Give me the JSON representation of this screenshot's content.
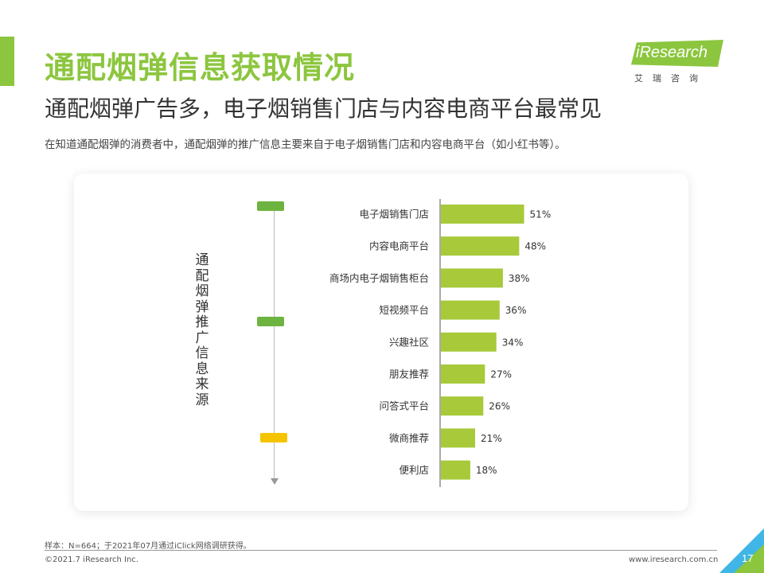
{
  "header": {
    "title": "通配烟弹信息获取情况",
    "subtitle": "通配烟弹广告多，电子烟销售门店与内容电商平台最常见",
    "description": "在知道通配烟弹的消费者中，通配烟弹的推广信息主要来自于电子烟销售门店和内容电商平台（如小红书等）。"
  },
  "logo": {
    "text": "iResearch",
    "cn": "艾瑞咨询",
    "color": "#8cc63f"
  },
  "side_label": "通配烟弹推广信息来源",
  "chart_data": {
    "type": "bar",
    "orientation": "horizontal",
    "categories": [
      "电子烟销售门店",
      "内容电商平台",
      "商场内电子烟销售柜台",
      "短视频平台",
      "兴趣社区",
      "朋友推荐",
      "问答式平台",
      "微商推荐",
      "便利店"
    ],
    "values": [
      51,
      48,
      38,
      36,
      34,
      27,
      26,
      21,
      18
    ],
    "value_labels": [
      "51%",
      "48%",
      "38%",
      "36%",
      "34%",
      "27%",
      "26%",
      "21%",
      "18%"
    ],
    "unit": "%",
    "bar_color": "#a8c93a",
    "xlim": [
      0,
      100
    ]
  },
  "footer": {
    "sample": "样本：N=664；于2021年07月通过iClick网络调研获得。",
    "copyright": "©2021.7 iResearch Inc.",
    "url": "www.iresearch.com.cn",
    "page": "17"
  },
  "colors": {
    "accent": "#8cc63f",
    "marker_green": "#6db33f",
    "marker_yellow": "#f5c400",
    "corner_blue": "#3fb6e6"
  }
}
